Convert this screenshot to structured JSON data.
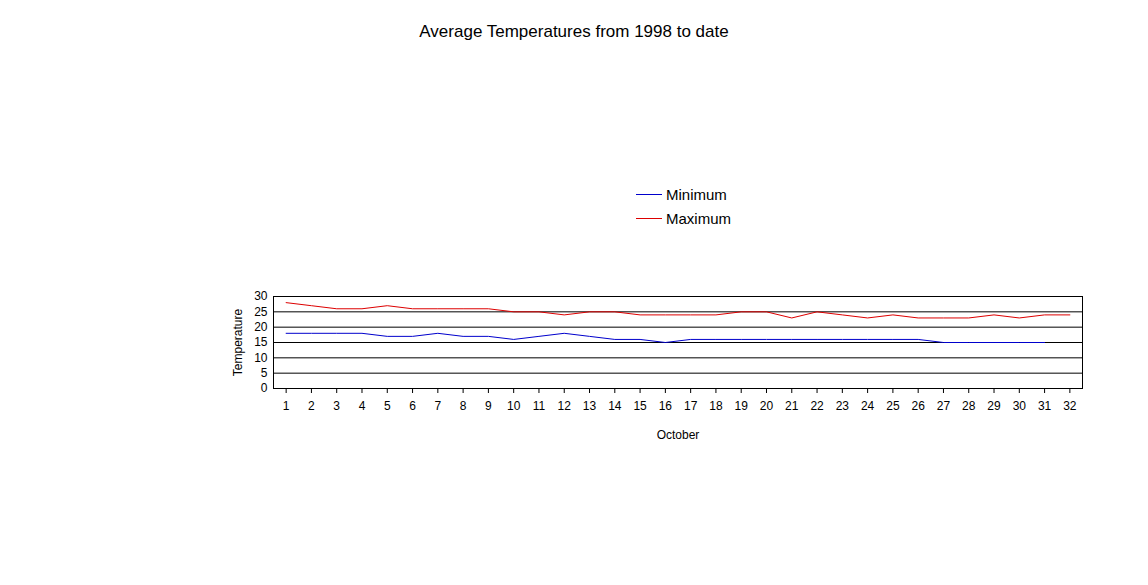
{
  "chart_data": {
    "type": "line",
    "title": "Average Temperatures from 1998 to date",
    "x_label": "October",
    "y_label": "Temperature",
    "x": [
      1,
      2,
      3,
      4,
      5,
      6,
      7,
      8,
      9,
      10,
      11,
      12,
      13,
      14,
      15,
      16,
      17,
      18,
      19,
      20,
      21,
      22,
      23,
      24,
      25,
      26,
      27,
      28,
      29,
      30,
      31,
      32
    ],
    "xlim": [
      0.5,
      32.5
    ],
    "xticks": [
      1,
      2,
      3,
      4,
      5,
      6,
      7,
      8,
      9,
      10,
      11,
      12,
      13,
      14,
      15,
      16,
      17,
      18,
      19,
      20,
      21,
      22,
      23,
      24,
      25,
      26,
      27,
      28,
      29,
      30,
      31,
      32
    ],
    "ylim": [
      0,
      30
    ],
    "yticks": [
      0,
      5,
      10,
      15,
      20,
      25,
      30
    ],
    "grid": true,
    "legend": "top",
    "series": [
      {
        "name": "Minimum",
        "color": "#0000cc",
        "values": [
          18,
          18,
          18,
          18,
          17,
          17,
          18,
          17,
          17,
          16,
          17,
          18,
          17,
          16,
          16,
          15,
          16,
          16,
          16,
          16,
          16,
          16,
          16,
          16,
          16,
          16,
          15,
          15,
          15,
          15,
          15,
          null
        ]
      },
      {
        "name": "Maximum",
        "color": "#dd0000",
        "values": [
          28,
          27,
          26,
          26,
          27,
          26,
          26,
          26,
          26,
          25,
          25,
          24,
          25,
          25,
          24,
          24,
          24,
          24,
          25,
          25,
          23,
          25,
          24,
          23,
          24,
          23,
          23,
          23,
          24,
          23,
          24,
          24
        ]
      }
    ]
  }
}
